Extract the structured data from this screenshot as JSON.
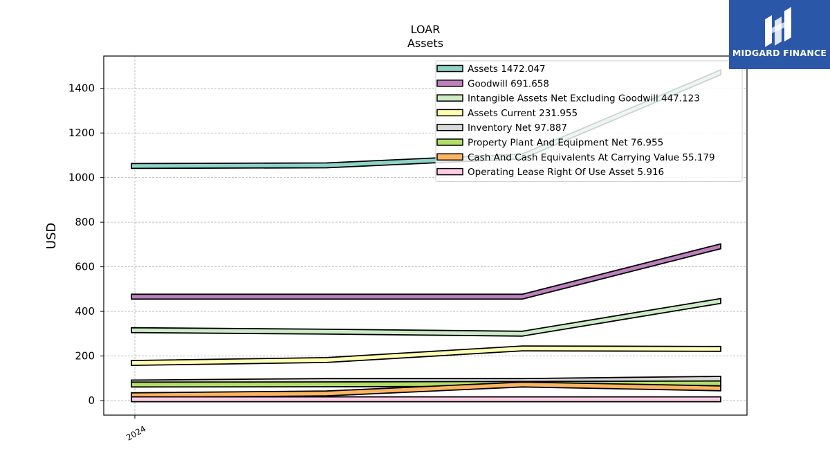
{
  "logo": {
    "text": "MIDGARD FINANCE",
    "icon": "midgard-logo-icon",
    "color": "#2b57a8"
  },
  "chart_data": {
    "type": "area",
    "title": "LOAR",
    "subtitle": "Assets",
    "ylabel": "USD",
    "xlabel": "",
    "x_tick_labels": [
      "2024"
    ],
    "ylim": [
      -65,
      1545
    ],
    "yticks": [
      0,
      200,
      400,
      600,
      800,
      1000,
      1200,
      1400
    ],
    "grid": true,
    "legend_position": "top-right",
    "series": [
      {
        "name": "Assets",
        "value_label": "1472.047",
        "color": "#8dd3c7",
        "values": [
          1052,
          1055,
          1095,
          1472
        ]
      },
      {
        "name": "Goodwill",
        "value_label": "691.658",
        "color": "#bc80bd",
        "values": [
          466,
          466,
          466,
          692
        ]
      },
      {
        "name": "Intangible Assets Net Excluding Goodwill",
        "value_label": "447.123",
        "color": "#ccebc5",
        "values": [
          316,
          309,
          300,
          447
        ]
      },
      {
        "name": "Assets Current",
        "value_label": "231.955",
        "color": "#ffffb3",
        "values": [
          169,
          182,
          234,
          232
        ]
      },
      {
        "name": "Inventory Net",
        "value_label": "97.887",
        "color": "#d9d9d9",
        "values": [
          81,
          88,
          88,
          98
        ]
      },
      {
        "name": "Property Plant And Equipment Net",
        "value_label": "76.955",
        "color": "#b3de69",
        "values": [
          72,
          73,
          75,
          77
        ]
      },
      {
        "name": "Cash And Cash Equivalents At Carrying Value",
        "value_label": "55.179",
        "color": "#fdb462",
        "values": [
          24,
          32,
          72,
          55
        ]
      },
      {
        "name": "Operating Lease Right Of Use Asset",
        "value_label": "5.916",
        "color": "#fccde5",
        "values": [
          6,
          6,
          6,
          6
        ]
      }
    ]
  }
}
